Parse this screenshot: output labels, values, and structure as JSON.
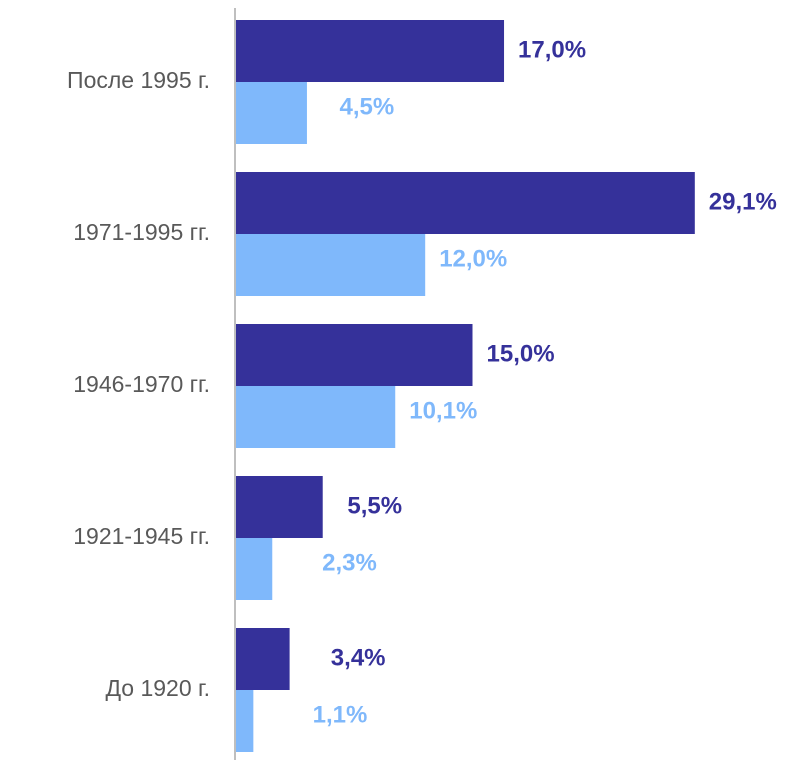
{
  "chart_data": {
    "type": "barh",
    "categories": [
      "После 1995 г.",
      "1971-1995 гг.",
      "1946-1970 гг.",
      "1921-1945 гг.",
      "До 1920 г."
    ],
    "series": [
      {
        "color": "#35319a",
        "values": [
          17.0,
          29.1,
          15.0,
          5.5,
          3.4
        ],
        "value_labels": [
          "17,0%",
          "29,1%",
          "15,0%",
          "5,5%",
          "3,4%"
        ]
      },
      {
        "color": "#7fb8fb",
        "values": [
          4.5,
          12.0,
          10.1,
          2.3,
          1.1
        ],
        "value_labels": [
          "4,5%",
          "12,0%",
          "10,1%",
          "2,3%",
          "1,1%"
        ]
      }
    ],
    "xlim": [
      0,
      30
    ]
  }
}
